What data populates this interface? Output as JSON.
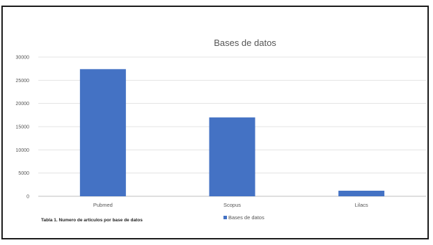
{
  "chart_data": {
    "type": "bar",
    "title": "Bases de datos",
    "categories": [
      "Pubmed",
      "Scopus",
      "Lilacs"
    ],
    "series": [
      {
        "name": "Bases de datos",
        "values": [
          27400,
          17000,
          1200
        ],
        "color": "#4472C4"
      }
    ],
    "yticks": [
      "0",
      "5000",
      "10000",
      "15000",
      "20000",
      "25000",
      "30000"
    ],
    "ylim": [
      0,
      30000
    ],
    "grid": true,
    "legend_position": "bottom"
  },
  "caption": "Tabla 1. Numero de articulos por base de datos"
}
